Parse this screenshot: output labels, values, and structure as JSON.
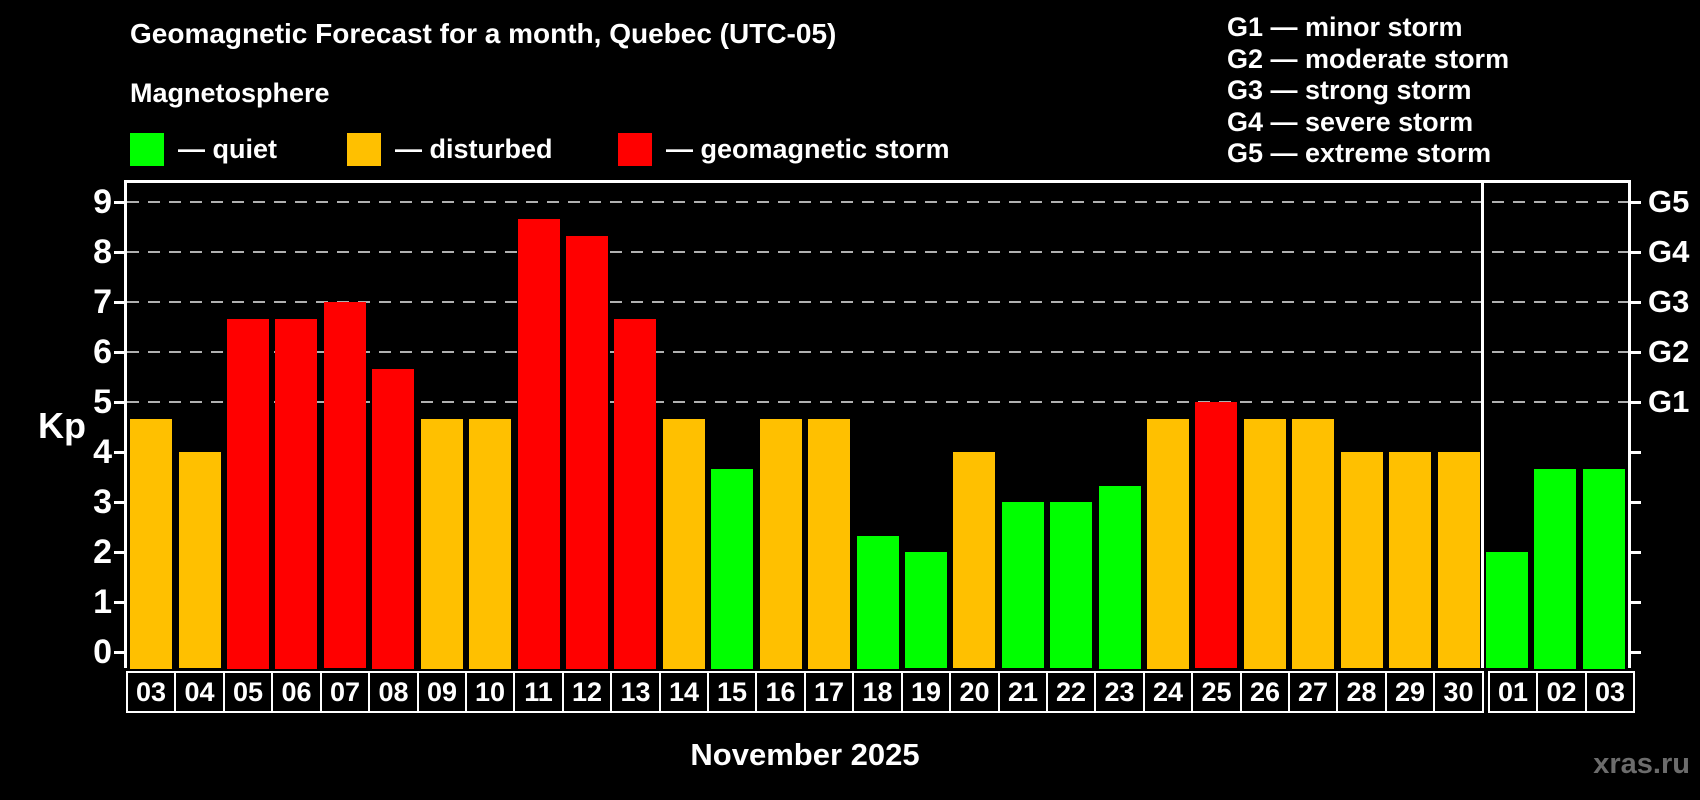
{
  "header": {
    "title": "Geomagnetic Forecast for a month, Quebec (UTC-05)",
    "subtitle": "Magnetosphere"
  },
  "legend": {
    "items": [
      {
        "id": "quiet",
        "label": "— quiet",
        "color": "#00ff00"
      },
      {
        "id": "disturbed",
        "label": "— disturbed",
        "color": "#ffc000"
      },
      {
        "id": "storm",
        "label": "— geomagnetic storm",
        "color": "#ff0000"
      }
    ]
  },
  "g_legend": {
    "items": [
      {
        "label": "G1 — minor storm"
      },
      {
        "label": "G2 — moderate storm"
      },
      {
        "label": "G3 — strong storm"
      },
      {
        "label": "G4 — severe storm"
      },
      {
        "label": "G5 — extreme storm"
      }
    ]
  },
  "axes": {
    "y_title": "Kp",
    "y_ticks": [
      "0",
      "1",
      "2",
      "3",
      "4",
      "5",
      "6",
      "7",
      "8",
      "9"
    ],
    "right_labels": [
      {
        "kp": 5,
        "label": "G1"
      },
      {
        "kp": 6,
        "label": "G2"
      },
      {
        "kp": 7,
        "label": "G3"
      },
      {
        "kp": 8,
        "label": "G4"
      },
      {
        "kp": 9,
        "label": "G5"
      }
    ]
  },
  "chart_data": {
    "type": "bar",
    "title": "Geomagnetic Forecast for a month, Quebec (UTC-05)",
    "xlabel": "November 2025",
    "ylabel": "Kp",
    "ylim": [
      -0.35,
      9.35
    ],
    "grid": "horizontal dashed lines at Kp 5-9 (G1-G5)",
    "legend_position": "top",
    "gridlines_at": [
      5,
      6,
      7,
      8,
      9
    ],
    "categories": [
      "03",
      "04",
      "05",
      "06",
      "07",
      "08",
      "09",
      "10",
      "11",
      "12",
      "13",
      "14",
      "15",
      "16",
      "17",
      "18",
      "19",
      "20",
      "21",
      "22",
      "23",
      "24",
      "25",
      "26",
      "27",
      "28",
      "29",
      "30",
      "01",
      "02",
      "03"
    ],
    "values": [
      4.67,
      4.0,
      6.67,
      6.67,
      7.0,
      5.67,
      4.67,
      4.67,
      8.67,
      8.33,
      6.67,
      4.67,
      3.67,
      4.67,
      4.67,
      2.33,
      2.0,
      4.0,
      3.0,
      3.0,
      3.33,
      4.67,
      5.0,
      4.67,
      4.67,
      4.0,
      4.0,
      4.0,
      2.0,
      3.67,
      3.67
    ],
    "states": [
      "disturbed",
      "disturbed",
      "storm",
      "storm",
      "storm",
      "storm",
      "disturbed",
      "disturbed",
      "storm",
      "storm",
      "storm",
      "disturbed",
      "quiet",
      "disturbed",
      "disturbed",
      "quiet",
      "quiet",
      "disturbed",
      "quiet",
      "quiet",
      "quiet",
      "disturbed",
      "storm",
      "disturbed",
      "disturbed",
      "disturbed",
      "disturbed",
      "disturbed",
      "quiet",
      "quiet",
      "quiet"
    ],
    "state_colors": {
      "quiet": "#00ff00",
      "disturbed": "#ffc000",
      "storm": "#ff0000"
    },
    "november_last_index": 27
  },
  "footer": {
    "month_label": "November 2025",
    "watermark": "xras.ru"
  }
}
